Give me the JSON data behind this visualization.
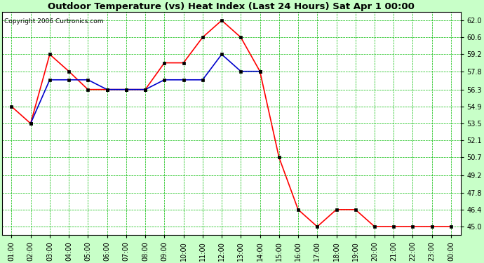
{
  "title": "Outdoor Temperature (vs) Heat Index (Last 24 Hours) Sat Apr 1 00:00",
  "copyright": "Copyright 2006 Curtronics.com",
  "x_labels": [
    "01:00",
    "02:00",
    "03:00",
    "04:00",
    "05:00",
    "06:00",
    "07:00",
    "08:00",
    "09:00",
    "10:00",
    "11:00",
    "12:00",
    "13:00",
    "14:00",
    "15:00",
    "16:00",
    "17:00",
    "18:00",
    "19:00",
    "20:00",
    "21:00",
    "22:00",
    "23:00",
    "00:00"
  ],
  "red_values": [
    54.9,
    53.5,
    59.2,
    57.8,
    56.3,
    56.3,
    56.3,
    56.3,
    58.5,
    58.5,
    60.6,
    62.0,
    60.6,
    57.8,
    50.7,
    46.4,
    45.0,
    46.4,
    46.4,
    45.0,
    45.0,
    45.0,
    45.0,
    45.0
  ],
  "blue_values": [
    null,
    53.5,
    57.1,
    57.1,
    57.1,
    56.3,
    56.3,
    56.3,
    57.1,
    57.1,
    57.1,
    59.2,
    57.8,
    57.8,
    null,
    null,
    null,
    null,
    null,
    null,
    null,
    null,
    null,
    null
  ],
  "ylim_min": 44.3,
  "ylim_max": 62.7,
  "yticks": [
    45.0,
    46.4,
    47.8,
    49.2,
    50.7,
    52.1,
    53.5,
    54.9,
    56.3,
    57.8,
    59.2,
    60.6,
    62.0
  ],
  "bg_color": "#c8ffc8",
  "plot_bg": "#ffffff",
  "grid_color": "#00bb00",
  "red_color": "#ff0000",
  "blue_color": "#0000cc",
  "marker_color": "#000000",
  "title_fontsize": 9.5,
  "copyright_fontsize": 6.5,
  "tick_fontsize": 7,
  "figwidth": 6.9,
  "figheight": 3.75,
  "dpi": 100
}
